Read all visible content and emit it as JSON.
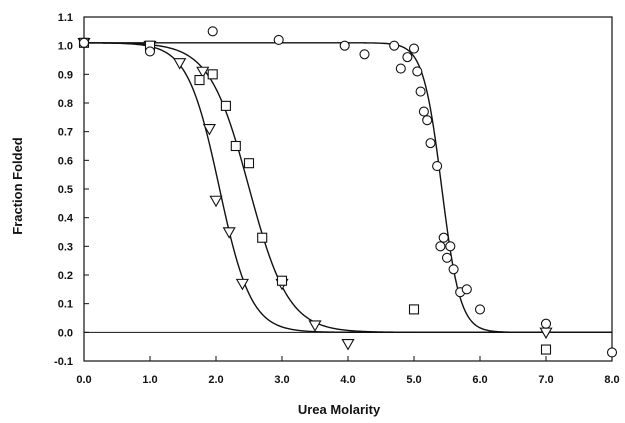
{
  "chart_data": {
    "type": "scatter",
    "xlabel": "Urea Molarity",
    "ylabel": "Fraction Folded",
    "xlim": [
      0,
      8
    ],
    "ylim": [
      -0.1,
      1.1
    ],
    "x_ticks": [
      0,
      1,
      2,
      3,
      4,
      5,
      6,
      7,
      8
    ],
    "x_tick_labels": [
      "0.0",
      "1.0",
      "2.0",
      "3.0",
      "4.0",
      "5.0",
      "6.0",
      "7.0",
      "8.0"
    ],
    "y_ticks": [
      -0.1,
      0.0,
      0.1,
      0.2,
      0.3,
      0.4,
      0.5,
      0.6,
      0.7,
      0.8,
      0.9,
      1.0,
      1.1
    ],
    "y_tick_labels": [
      "-0.1",
      "0.0",
      "0.1",
      "0.2",
      "0.3",
      "0.4",
      "0.5",
      "0.6",
      "0.7",
      "0.8",
      "0.9",
      "1.0",
      "1.1"
    ],
    "grid": false,
    "legend": "none",
    "colors": {
      "ink": "#111111",
      "background": "#ffffff"
    },
    "series": [
      {
        "marker": "triangle-down",
        "points": [
          [
            0.0,
            1.01
          ],
          [
            1.0,
            1.0
          ],
          [
            1.45,
            0.94
          ],
          [
            1.8,
            0.91
          ],
          [
            1.9,
            0.71
          ],
          [
            2.0,
            0.46
          ],
          [
            2.2,
            0.35
          ],
          [
            2.4,
            0.17
          ],
          [
            3.0,
            0.17
          ],
          [
            3.5,
            0.025
          ],
          [
            4.0,
            -0.04
          ],
          [
            7.0,
            0.0
          ]
        ],
        "fit": {
          "top": 1.01,
          "bottom": 0.0,
          "midpoint": 2.05,
          "slope": 0.24
        }
      },
      {
        "marker": "square",
        "points": [
          [
            0.0,
            1.01
          ],
          [
            1.0,
            1.0
          ],
          [
            1.75,
            0.88
          ],
          [
            1.95,
            0.9
          ],
          [
            2.15,
            0.79
          ],
          [
            2.3,
            0.65
          ],
          [
            2.5,
            0.59
          ],
          [
            2.7,
            0.33
          ],
          [
            3.0,
            0.18
          ],
          [
            5.0,
            0.08
          ],
          [
            7.0,
            -0.06
          ]
        ],
        "fit": {
          "top": 1.01,
          "bottom": 0.0,
          "midpoint": 2.5,
          "slope": 0.3
        }
      },
      {
        "marker": "circle",
        "points": [
          [
            0.0,
            1.01
          ],
          [
            1.0,
            0.98
          ],
          [
            1.95,
            1.05
          ],
          [
            2.95,
            1.02
          ],
          [
            3.95,
            1.0
          ],
          [
            4.25,
            0.97
          ],
          [
            4.7,
            1.0
          ],
          [
            4.8,
            0.92
          ],
          [
            4.9,
            0.96
          ],
          [
            5.0,
            0.99
          ],
          [
            5.05,
            0.91
          ],
          [
            5.1,
            0.84
          ],
          [
            5.15,
            0.77
          ],
          [
            5.2,
            0.74
          ],
          [
            5.25,
            0.66
          ],
          [
            5.35,
            0.58
          ],
          [
            5.4,
            0.3
          ],
          [
            5.45,
            0.33
          ],
          [
            5.5,
            0.26
          ],
          [
            5.55,
            0.3
          ],
          [
            5.6,
            0.22
          ],
          [
            5.7,
            0.14
          ],
          [
            5.8,
            0.15
          ],
          [
            6.0,
            0.08
          ],
          [
            7.0,
            0.03
          ],
          [
            8.0,
            -0.07
          ]
        ],
        "fit": {
          "top": 1.01,
          "bottom": 0.0,
          "midpoint": 5.42,
          "slope": 0.14
        }
      }
    ]
  }
}
